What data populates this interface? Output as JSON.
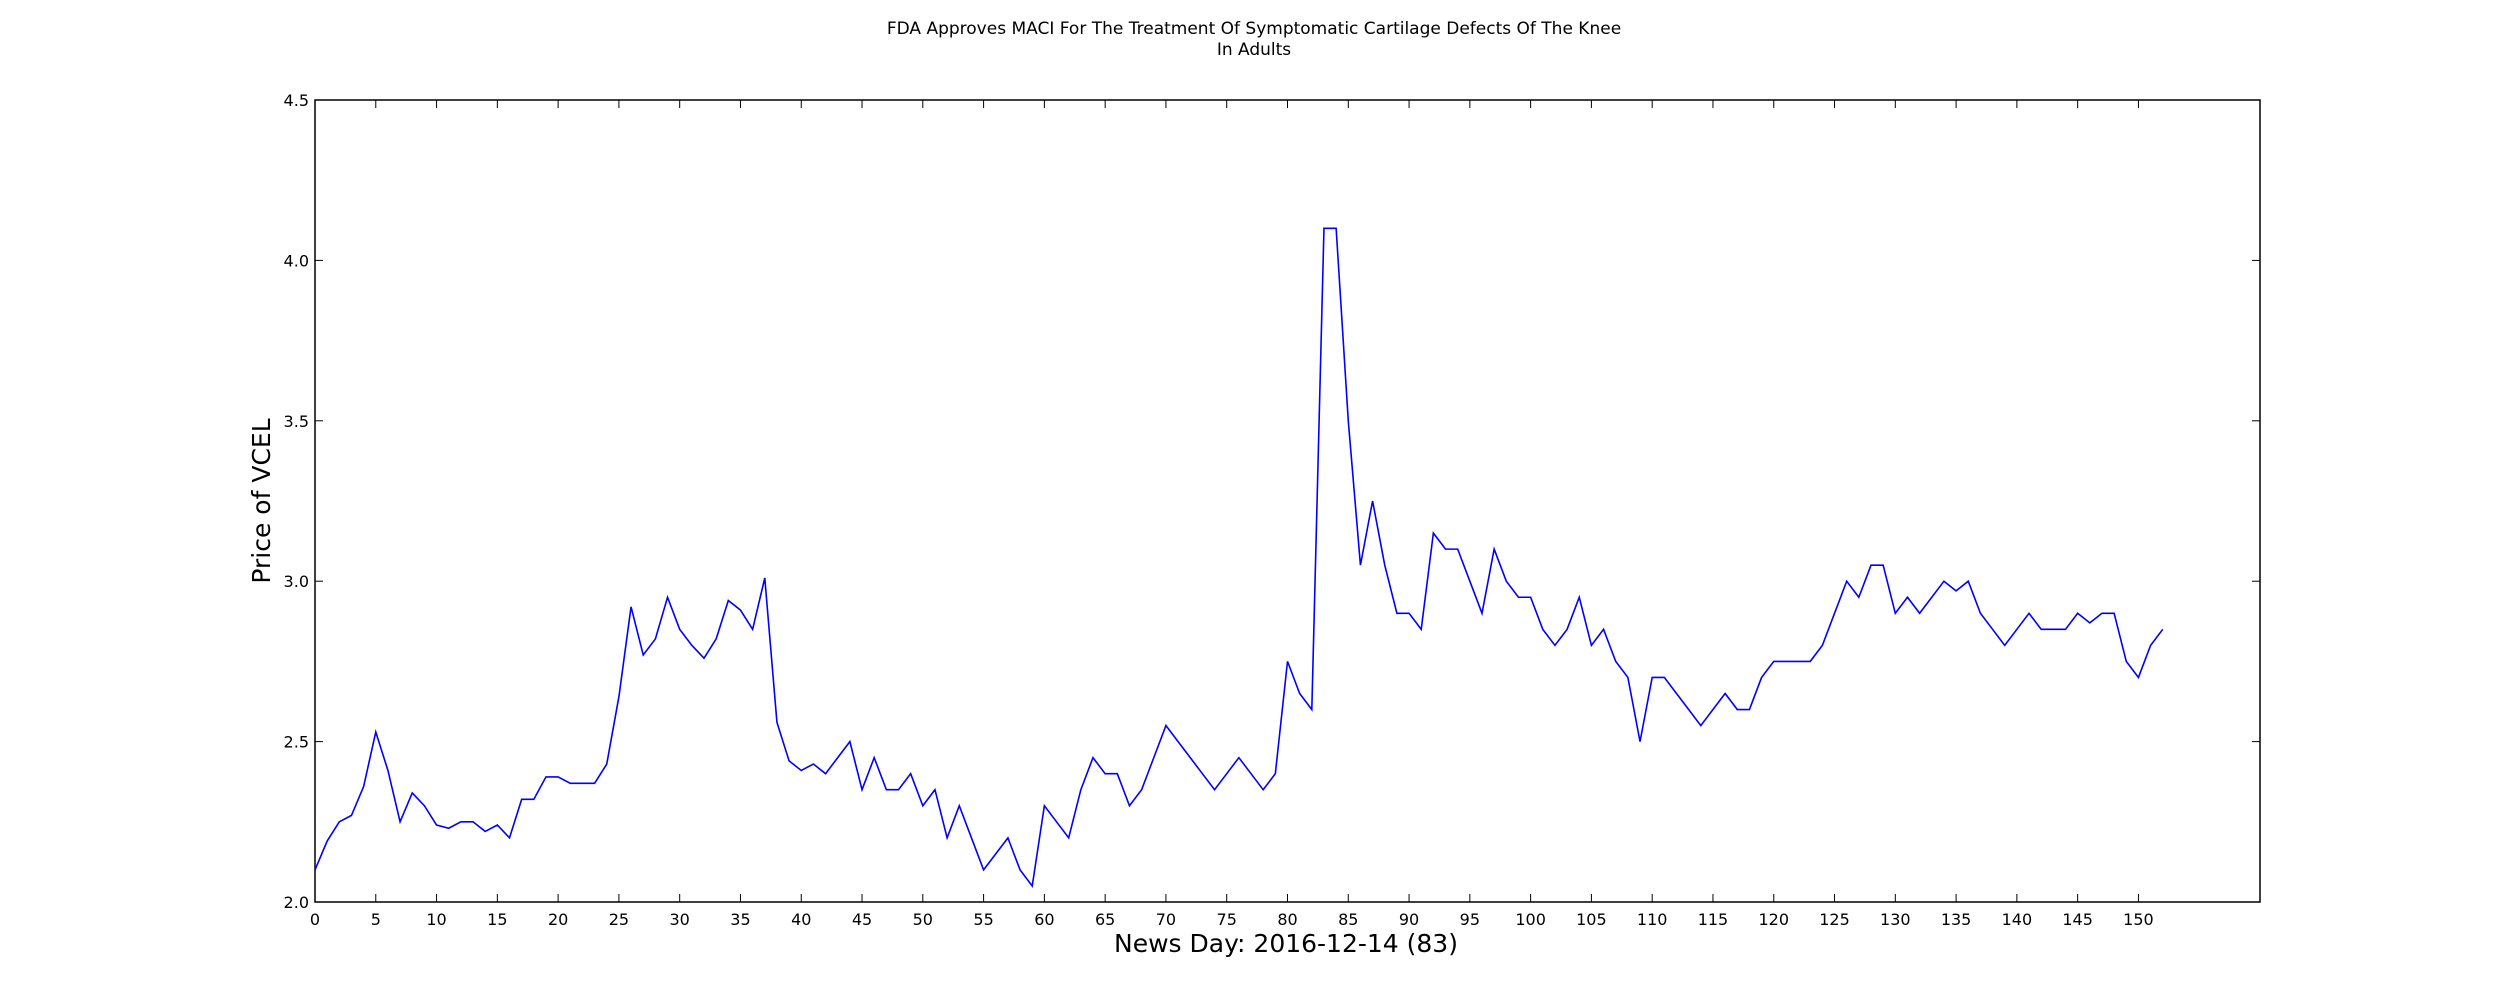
{
  "chart_data": {
    "type": "line",
    "title_lines": [
      "FDA Approves MACI For The Treatment Of Symptomatic Cartilage Defects Of The Knee",
      "In Adults"
    ],
    "xlabel": "News Day: 2016-12-14 (83)",
    "ylabel": "Price of VCEL",
    "xlim": [
      0,
      160
    ],
    "ylim": [
      2.0,
      4.5
    ],
    "x_ticks": [
      0,
      5,
      10,
      15,
      20,
      25,
      30,
      35,
      40,
      45,
      50,
      55,
      60,
      65,
      70,
      75,
      80,
      85,
      90,
      95,
      100,
      105,
      110,
      115,
      120,
      125,
      130,
      135,
      140,
      145,
      150
    ],
    "y_ticks": [
      "2.0",
      "2.5",
      "3.0",
      "3.5",
      "4.0",
      "4.5"
    ],
    "grid": false,
    "line_color": "#0000ff",
    "series": [
      {
        "x": [
          0,
          1,
          2,
          3,
          4,
          5,
          6,
          7,
          8,
          9,
          10,
          11,
          12,
          13,
          14,
          15,
          16,
          17,
          18,
          19,
          20,
          21,
          22,
          23,
          24,
          25,
          26,
          27,
          28,
          29,
          30,
          31,
          32,
          33,
          34,
          35,
          36,
          37,
          38,
          39,
          40,
          41,
          42,
          43,
          44,
          45,
          46,
          47,
          48,
          49,
          50,
          51,
          52,
          53,
          54,
          55,
          56,
          57,
          58,
          59,
          60,
          61,
          62,
          63,
          64,
          65,
          66,
          67,
          68,
          69,
          70,
          71,
          72,
          73,
          74,
          75,
          76,
          77,
          78,
          79,
          80,
          81,
          82,
          83,
          84,
          85,
          86,
          87,
          88,
          89,
          90,
          91,
          92,
          93,
          94,
          95,
          96,
          97,
          98,
          99,
          100,
          101,
          102,
          103,
          104,
          105,
          106,
          107,
          108,
          109,
          110,
          111,
          112,
          113,
          114,
          115,
          116,
          117,
          118,
          119,
          120,
          121,
          122,
          123,
          124,
          125,
          126,
          127,
          128,
          129,
          130,
          131,
          132,
          133,
          134,
          135,
          136,
          137,
          138,
          139,
          140,
          141,
          142,
          143,
          144,
          145,
          146,
          147,
          148,
          149,
          150,
          151,
          152
        ],
        "y": [
          2.1,
          2.19,
          2.25,
          2.27,
          2.36,
          2.53,
          2.41,
          2.25,
          2.34,
          2.3,
          2.24,
          2.23,
          2.25,
          2.25,
          2.22,
          2.24,
          2.2,
          2.32,
          2.32,
          2.39,
          2.39,
          2.37,
          2.37,
          2.37,
          2.43,
          2.64,
          2.92,
          2.77,
          2.82,
          2.95,
          2.85,
          2.8,
          2.76,
          2.82,
          2.94,
          2.91,
          2.85,
          3.01,
          2.56,
          2.44,
          2.41,
          2.43,
          2.4,
          2.45,
          2.5,
          2.35,
          2.45,
          2.35,
          2.35,
          2.4,
          2.3,
          2.35,
          2.2,
          2.3,
          2.2,
          2.1,
          2.15,
          2.2,
          2.1,
          2.05,
          2.3,
          2.25,
          2.2,
          2.35,
          2.45,
          2.4,
          2.4,
          2.3,
          2.35,
          2.45,
          2.55,
          2.5,
          2.45,
          2.4,
          2.35,
          2.4,
          2.45,
          2.4,
          2.35,
          2.4,
          2.75,
          2.65,
          2.6,
          4.1,
          4.1,
          3.5,
          3.05,
          3.25,
          3.05,
          2.9,
          2.9,
          2.85,
          3.15,
          3.1,
          3.1,
          3.0,
          2.9,
          3.1,
          3.0,
          2.95,
          2.95,
          2.85,
          2.8,
          2.85,
          2.95,
          2.8,
          2.85,
          2.75,
          2.7,
          2.5,
          2.7,
          2.7,
          2.65,
          2.6,
          2.55,
          2.6,
          2.65,
          2.6,
          2.6,
          2.7,
          2.75,
          2.75,
          2.75,
          2.75,
          2.8,
          2.9,
          3.0,
          2.95,
          3.05,
          3.05,
          2.9,
          2.95,
          2.9,
          2.95,
          3.0,
          2.97,
          3.0,
          2.9,
          2.85,
          2.8,
          2.85,
          2.9,
          2.85,
          2.85,
          2.85,
          2.9,
          2.87,
          2.9,
          2.9,
          2.75,
          2.7,
          2.8,
          2.85
        ]
      }
    ]
  }
}
